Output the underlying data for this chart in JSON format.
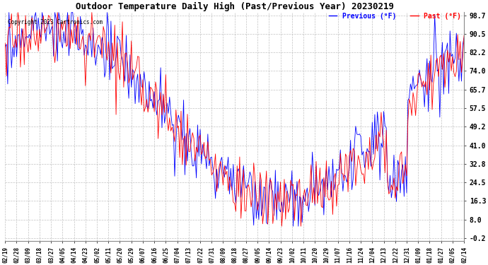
{
  "title": "Outdoor Temperature Daily High (Past/Previous Year) 20230219",
  "copyright": "Copyright 2023 Cartronics.com",
  "legend_previous": "Previous (°F)",
  "legend_past": "Past (°F)",
  "color_previous": "#0000ff",
  "color_past": "#ff0000",
  "yticks": [
    98.7,
    90.5,
    82.2,
    74.0,
    65.7,
    57.5,
    49.2,
    41.0,
    32.8,
    24.5,
    16.3,
    8.0,
    -0.2
  ],
  "ymin": -0.2,
  "ymax": 98.7,
  "bg_color": "#ffffff",
  "grid_color": "#bbbbbb",
  "title_fontsize": 9,
  "xtick_labels": [
    "02/19",
    "02/28",
    "03/09",
    "03/18",
    "03/27",
    "04/05",
    "04/14",
    "04/23",
    "05/02",
    "05/11",
    "05/20",
    "05/29",
    "06/07",
    "06/16",
    "06/25",
    "07/04",
    "07/13",
    "07/22",
    "07/31",
    "08/09",
    "08/18",
    "08/27",
    "09/05",
    "09/14",
    "09/23",
    "10/02",
    "10/11",
    "10/20",
    "10/29",
    "11/07",
    "11/16",
    "11/24",
    "12/04",
    "12/13",
    "12/22",
    "12/31",
    "01/09",
    "01/18",
    "01/27",
    "02/05",
    "02/14"
  ],
  "figsize": [
    6.9,
    3.75
  ],
  "dpi": 100
}
